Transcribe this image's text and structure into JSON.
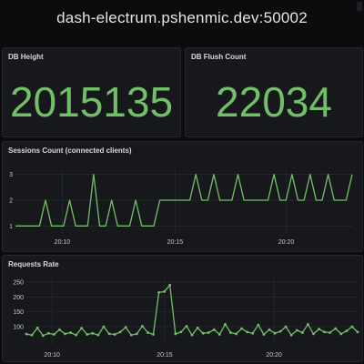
{
  "header": {
    "title": "dash-electrum.pshenmic.dev:50002"
  },
  "db_height": {
    "title": "DB Height",
    "value": "2015135"
  },
  "db_flush": {
    "title": "DB Flush Count",
    "value": "22034"
  },
  "colors": {
    "line": "#73bf69",
    "grid": "#2c2e33",
    "axis_text": "#c7c8ca",
    "panel": "#17181c"
  },
  "chart_data": [
    {
      "type": "line",
      "title": "Sessions Count (connected clients)",
      "x_ticks": [
        "20:10",
        "20:15",
        "20:20"
      ],
      "y_ticks": [
        1,
        2,
        3
      ],
      "ylim": [
        0.8,
        3.2
      ],
      "values": [
        1,
        1,
        1,
        1,
        1,
        2,
        1,
        1,
        1,
        2,
        1,
        1,
        1,
        3,
        1,
        1,
        2,
        1,
        1,
        1,
        2,
        1,
        1,
        1,
        2,
        2,
        2,
        2,
        2,
        2,
        3,
        2,
        2,
        3,
        2,
        2,
        2,
        3,
        2,
        2,
        2,
        2,
        2,
        3,
        2,
        2,
        3,
        2,
        2,
        3,
        2,
        2,
        3,
        2,
        2,
        2,
        3
      ]
    },
    {
      "type": "line",
      "title": "Requests Rate",
      "x_ticks": [
        "20:10",
        "20:15",
        "20:20"
      ],
      "y_ticks": [
        100,
        150,
        200,
        250
      ],
      "ylim": [
        45,
        265
      ],
      "values": [
        75,
        72,
        96,
        70,
        78,
        74,
        90,
        76,
        80,
        72,
        95,
        74,
        78,
        72,
        100,
        76,
        74,
        82,
        98,
        72,
        76,
        102,
        80,
        74,
        215,
        218,
        240,
        76,
        82,
        102,
        72,
        96,
        78,
        80,
        90,
        74,
        108,
        80,
        76,
        94,
        82,
        78,
        106,
        74,
        90,
        78,
        84,
        100,
        72,
        88,
        80,
        108,
        76,
        92,
        82,
        80,
        94,
        76,
        86,
        100,
        82
      ]
    }
  ]
}
